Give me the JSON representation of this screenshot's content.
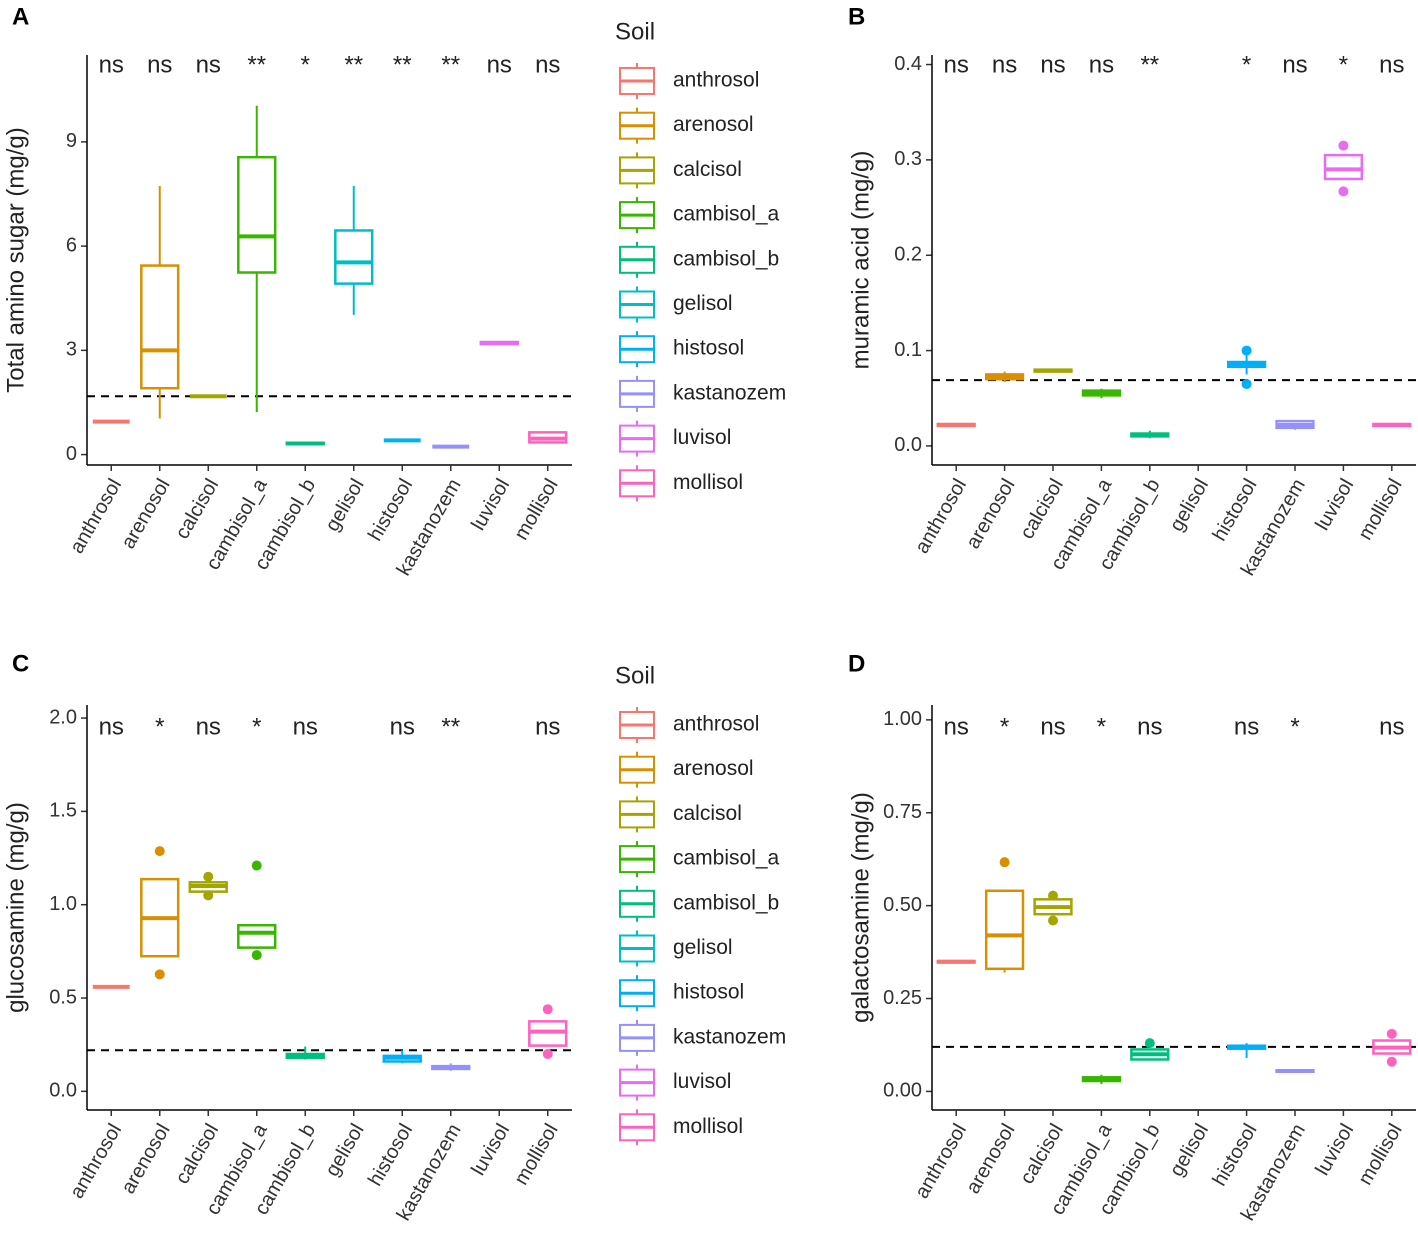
{
  "chart_data": [
    {
      "type": "box",
      "panel": "A",
      "ylabel": "Total amino sugar (mg/g)",
      "legend_title": "Soil",
      "categories": [
        "anthrosol",
        "arenosol",
        "calcisol",
        "cambisol_a",
        "cambisol_b",
        "gelisol",
        "histosol",
        "kastanozem",
        "luvisol",
        "mollisol"
      ],
      "colors": [
        "#F8766D",
        "#D89000",
        "#A3A500",
        "#39B600",
        "#00BF7D",
        "#00BFC4",
        "#00B0F6",
        "#9590FF",
        "#E76BF3",
        "#FF62BC"
      ],
      "boxes": [
        {
          "min": 0.95,
          "q1": 0.95,
          "median": 0.95,
          "q3": 0.95,
          "max": 0.95,
          "outliers": []
        },
        {
          "min": 1.04,
          "q1": 1.91,
          "median": 3.0,
          "q3": 5.44,
          "max": 7.73,
          "outliers": []
        },
        {
          "min": 1.68,
          "q1": 1.68,
          "median": 1.68,
          "q3": 1.68,
          "max": 1.68,
          "outliers": []
        },
        {
          "min": 1.22,
          "q1": 5.24,
          "median": 6.28,
          "q3": 8.56,
          "max": 10.04,
          "outliers": []
        },
        {
          "min": 0.3,
          "q1": 0.3,
          "median": 0.32,
          "q3": 0.34,
          "max": 0.36,
          "outliers": []
        },
        {
          "min": 4.02,
          "q1": 4.92,
          "median": 5.53,
          "q3": 6.45,
          "max": 7.73,
          "outliers": []
        },
        {
          "min": 0.41,
          "q1": 0.41,
          "median": 0.41,
          "q3": 0.41,
          "max": 0.41,
          "outliers": []
        },
        {
          "min": 0.23,
          "q1": 0.23,
          "median": 0.23,
          "q3": 0.23,
          "max": 0.23,
          "outliers": []
        },
        {
          "min": 3.18,
          "q1": 3.18,
          "median": 3.21,
          "q3": 3.24,
          "max": 3.24,
          "outliers": []
        },
        {
          "min": 0.35,
          "q1": 0.35,
          "median": 0.46,
          "q3": 0.64,
          "max": 0.64,
          "outliers": []
        }
      ],
      "significance": [
        "ns",
        "ns",
        "ns",
        "**",
        "*",
        "**",
        "**",
        "**",
        "ns",
        "ns"
      ],
      "hline": 1.68,
      "ylim": [
        -0.3,
        11.5
      ],
      "yticks": [
        0,
        3,
        6,
        9
      ]
    },
    {
      "type": "box",
      "panel": "B",
      "ylabel": "muramic acid (mg/g)",
      "categories": [
        "anthrosol",
        "arenosol",
        "calcisol",
        "cambisol_a",
        "cambisol_b",
        "gelisol",
        "histosol",
        "kastanozem",
        "luvisol",
        "mollisol"
      ],
      "colors": [
        "#F8766D",
        "#D89000",
        "#A3A500",
        "#39B600",
        "#00BF7D",
        "#00BFC4",
        "#00B0F6",
        "#9590FF",
        "#E76BF3",
        "#FF62BC"
      ],
      "boxes": [
        {
          "min": 0.02,
          "q1": 0.021,
          "median": 0.022,
          "q3": 0.023,
          "max": 0.024,
          "outliers": []
        },
        {
          "min": 0.067,
          "q1": 0.07,
          "median": 0.072,
          "q3": 0.075,
          "max": 0.078,
          "outliers": []
        },
        {
          "min": 0.078,
          "q1": 0.078,
          "median": 0.079,
          "q3": 0.08,
          "max": 0.08,
          "outliers": []
        },
        {
          "min": 0.05,
          "q1": 0.053,
          "median": 0.055,
          "q3": 0.058,
          "max": 0.06,
          "outliers": []
        },
        {
          "min": 0.008,
          "q1": 0.01,
          "median": 0.012,
          "q3": 0.013,
          "max": 0.016,
          "outliers": []
        },
        null,
        {
          "min": 0.075,
          "q1": 0.083,
          "median": 0.086,
          "q3": 0.088,
          "max": 0.095,
          "outliers": [
            0.065,
            0.1
          ]
        },
        {
          "min": 0.017,
          "q1": 0.019,
          "median": 0.022,
          "q3": 0.026,
          "max": 0.027,
          "outliers": []
        },
        {
          "min": 0.28,
          "q1": 0.28,
          "median": 0.29,
          "q3": 0.305,
          "max": 0.305,
          "outliers": [
            0.315,
            0.267
          ]
        },
        {
          "min": 0.02,
          "q1": 0.021,
          "median": 0.022,
          "q3": 0.023,
          "max": 0.024,
          "outliers": []
        }
      ],
      "significance": [
        "ns",
        "ns",
        "ns",
        "ns",
        "**",
        null,
        "*",
        "ns",
        "*",
        "ns"
      ],
      "hline": 0.069,
      "ylim": [
        -0.02,
        0.41
      ],
      "yticks": [
        {
          "value": 0,
          "label": "0.0"
        },
        0.1,
        0.2,
        0.3,
        0.4
      ]
    },
    {
      "type": "box",
      "panel": "C",
      "ylabel": "glucosamine (mg/g)",
      "legend_title": "Soil",
      "categories": [
        "anthrosol",
        "arenosol",
        "calcisol",
        "cambisol_a",
        "cambisol_b",
        "gelisol",
        "histosol",
        "kastanozem",
        "luvisol",
        "mollisol"
      ],
      "colors": [
        "#F8766D",
        "#D89000",
        "#A3A500",
        "#39B600",
        "#00BF7D",
        "#00BFC4",
        "#00B0F6",
        "#9590FF",
        "#E76BF3",
        "#FF62BC"
      ],
      "boxes": [
        {
          "min": 0.56,
          "q1": 0.56,
          "median": 0.56,
          "q3": 0.56,
          "max": 0.56,
          "outliers": []
        },
        {
          "min": 0.724,
          "q1": 0.724,
          "median": 0.928,
          "q3": 1.137,
          "max": 1.137,
          "outliers": [
            1.287,
            0.627
          ]
        },
        {
          "min": 1.07,
          "q1": 1.07,
          "median": 1.1,
          "q3": 1.12,
          "max": 1.12,
          "outliers": [
            1.15,
            1.05
          ]
        },
        {
          "min": 0.77,
          "q1": 0.77,
          "median": 0.85,
          "q3": 0.89,
          "max": 0.89,
          "outliers": [
            1.21,
            0.73
          ]
        },
        {
          "min": 0.17,
          "q1": 0.18,
          "median": 0.19,
          "q3": 0.2,
          "max": 0.24,
          "outliers": []
        },
        null,
        {
          "min": 0.15,
          "q1": 0.16,
          "median": 0.18,
          "q3": 0.19,
          "max": 0.22,
          "outliers": []
        },
        {
          "min": 0.11,
          "q1": 0.12,
          "median": 0.13,
          "q3": 0.135,
          "max": 0.15,
          "outliers": []
        },
        null,
        {
          "min": 0.245,
          "q1": 0.245,
          "median": 0.32,
          "q3": 0.375,
          "max": 0.375,
          "outliers": [
            0.44,
            0.2
          ]
        }
      ],
      "significance": [
        "ns",
        "*",
        "ns",
        "*",
        "ns",
        null,
        "ns",
        "**",
        null,
        "ns"
      ],
      "hline": 0.22,
      "ylim": [
        -0.1,
        2.07
      ],
      "yticks": [
        {
          "value": 0,
          "label": "0.0"
        },
        0.5,
        {
          "value": 1,
          "label": "1.0"
        },
        1.5,
        {
          "value": 2,
          "label": "2.0"
        }
      ]
    },
    {
      "type": "box",
      "panel": "D",
      "ylabel": "galactosamine (mg/g)",
      "categories": [
        "anthrosol",
        "arenosol",
        "calcisol",
        "cambisol_a",
        "cambisol_b",
        "gelisol",
        "histosol",
        "kastanozem",
        "luvisol",
        "mollisol"
      ],
      "colors": [
        "#F8766D",
        "#D89000",
        "#A3A500",
        "#39B600",
        "#00BF7D",
        "#00BFC4",
        "#00B0F6",
        "#9590FF",
        "#E76BF3",
        "#FF62BC"
      ],
      "boxes": [
        {
          "min": 0.345,
          "q1": 0.347,
          "median": 0.349,
          "q3": 0.351,
          "max": 0.353,
          "outliers": []
        },
        {
          "min": 0.32,
          "q1": 0.33,
          "median": 0.42,
          "q3": 0.54,
          "max": 0.54,
          "outliers": [
            0.617
          ]
        },
        {
          "min": 0.477,
          "q1": 0.477,
          "median": 0.496,
          "q3": 0.517,
          "max": 0.517,
          "outliers": [
            0.527,
            0.46
          ]
        },
        {
          "min": 0.02,
          "q1": 0.028,
          "median": 0.033,
          "q3": 0.038,
          "max": 0.045,
          "outliers": []
        },
        {
          "min": 0.086,
          "q1": 0.086,
          "median": 0.1,
          "q3": 0.113,
          "max": 0.113,
          "outliers": [
            0.13
          ]
        },
        null,
        {
          "min": 0.09,
          "q1": 0.115,
          "median": 0.12,
          "q3": 0.123,
          "max": 0.13,
          "outliers": []
        },
        {
          "min": 0.052,
          "q1": 0.053,
          "median": 0.055,
          "q3": 0.057,
          "max": 0.058,
          "outliers": []
        },
        null,
        {
          "min": 0.102,
          "q1": 0.102,
          "median": 0.118,
          "q3": 0.137,
          "max": 0.137,
          "outliers": [
            0.155,
            0.08
          ]
        }
      ],
      "significance": [
        "ns",
        "*",
        "ns",
        "*",
        "ns",
        null,
        "ns",
        "*",
        null,
        "ns"
      ],
      "hline": 0.12,
      "ylim": [
        -0.05,
        1.04
      ],
      "yticks": [
        {
          "value": 0,
          "label": "0.00"
        },
        {
          "value": 0.25,
          "label": "0.25"
        },
        {
          "value": 0.5,
          "label": "0.50"
        },
        {
          "value": 0.75,
          "label": "0.75"
        },
        {
          "value": 1,
          "label": "1.00"
        }
      ]
    }
  ]
}
